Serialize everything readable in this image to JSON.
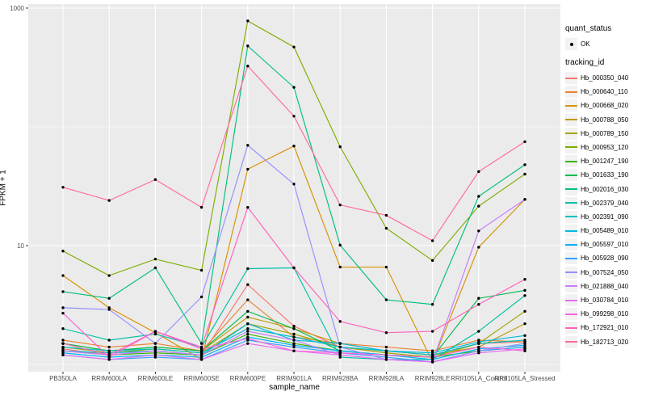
{
  "figure": {
    "bg": "#FFFFFF",
    "panel_bg": "#EBEBEB",
    "grid_color": "#FFFFFF",
    "tick_color": "#333333",
    "tick_label_color": "#4D4D4D",
    "point_color": "#000000"
  },
  "chart_data": {
    "type": "line",
    "title": "",
    "xlabel": "sample_name",
    "ylabel": "FPKM + 1",
    "y_scale": "log10",
    "ylim": [
      0.87,
      1080
    ],
    "grid": true,
    "legend_position": "right",
    "y_ticks": [
      {
        "label": "10",
        "value": 10
      },
      {
        "label": "1000",
        "value": 1000
      }
    ],
    "y_minor": [
      1,
      100
    ],
    "categories": [
      "PB350LA",
      "RRIM600LA",
      "RRIM600LE",
      "RRIM600SE",
      "RRIM600PE",
      "RRIM901LA",
      "RRIM928BA",
      "RRIM928LA",
      "RRIM928LE",
      "RRII105LA_Control",
      "RRII105LA_Stressed"
    ],
    "series": [
      {
        "name": "Hb_000350_040",
        "color": "#F8766D",
        "values": [
          1.35,
          1.2,
          1.3,
          1.2,
          4.7,
          2.1,
          1.4,
          1.3,
          1.2,
          1.5,
          1.55
        ]
      },
      {
        "name": "Hb_000640_110",
        "color": "#EA8331",
        "values": [
          1.6,
          1.4,
          1.5,
          1.3,
          3.5,
          1.7,
          1.5,
          1.4,
          1.3,
          1.6,
          1.55
        ]
      },
      {
        "name": "Hb_000668_020",
        "color": "#D89000",
        "values": [
          5.6,
          3.0,
          1.85,
          1.1,
          44,
          69,
          6.6,
          6.6,
          1.05,
          9.7,
          24.5
        ]
      },
      {
        "name": "Hb_000788_050",
        "color": "#C09B00",
        "values": [
          1.5,
          1.3,
          1.4,
          1.3,
          2.5,
          2.0,
          1.5,
          1.3,
          1.2,
          1.4,
          2.2
        ]
      },
      {
        "name": "Hb_000789_150",
        "color": "#A3A500",
        "values": [
          1.4,
          1.25,
          1.35,
          1.25,
          2.2,
          1.8,
          1.4,
          1.25,
          1.15,
          1.5,
          2.8
        ]
      },
      {
        "name": "Hb_000953_120",
        "color": "#7CAE00",
        "values": [
          9.0,
          5.6,
          7.7,
          6.2,
          780,
          470,
          68,
          14,
          7.5,
          21.5,
          40
        ]
      },
      {
        "name": "Hb_001247_190",
        "color": "#39B600",
        "values": [
          1.3,
          1.2,
          1.25,
          1.2,
          1.8,
          1.5,
          1.3,
          1.2,
          1.15,
          1.3,
          1.4
        ]
      },
      {
        "name": "Hb_001633_190",
        "color": "#00BB4E",
        "values": [
          1.5,
          1.3,
          1.4,
          1.3,
          2.8,
          2.0,
          1.3,
          1.2,
          1.15,
          3.6,
          4.2
        ]
      },
      {
        "name": "Hb_002016_030",
        "color": "#00BF7D",
        "values": [
          4.1,
          3.6,
          6.5,
          1.5,
          480,
          215,
          10.1,
          3.5,
          3.2,
          26,
          48
        ]
      },
      {
        "name": "Hb_002379_040",
        "color": "#00C1A3",
        "values": [
          2.0,
          1.6,
          1.8,
          1.4,
          6.4,
          6.5,
          1.15,
          1.1,
          1.1,
          1.9,
          3.8
        ]
      },
      {
        "name": "Hb_002391_090",
        "color": "#00BFC4",
        "values": [
          1.4,
          1.3,
          1.35,
          1.25,
          2.0,
          1.7,
          1.4,
          1.3,
          1.2,
          1.5,
          1.6
        ]
      },
      {
        "name": "Hb_005489_010",
        "color": "#00BAE0",
        "values": [
          1.3,
          1.25,
          1.3,
          1.2,
          2.2,
          1.6,
          1.5,
          1.3,
          1.25,
          1.55,
          1.75
        ]
      },
      {
        "name": "Hb_005597_010",
        "color": "#00B0F6",
        "values": [
          1.25,
          1.15,
          1.2,
          1.15,
          1.7,
          1.45,
          1.3,
          1.2,
          1.1,
          1.35,
          1.45
        ]
      },
      {
        "name": "Hb_005928_090",
        "color": "#35A2FF",
        "values": [
          1.2,
          1.1,
          1.15,
          1.1,
          1.6,
          1.4,
          1.25,
          1.15,
          1.05,
          1.3,
          1.4
        ]
      },
      {
        "name": "Hb_007524_050",
        "color": "#9590FF",
        "values": [
          3.0,
          2.9,
          1.5,
          3.7,
          70,
          33,
          1.4,
          1.1,
          1.05,
          1.3,
          1.5
        ]
      },
      {
        "name": "Hb_021888_040",
        "color": "#C77CFF",
        "values": [
          1.3,
          1.2,
          1.3,
          1.2,
          1.9,
          1.6,
          1.2,
          1.1,
          1.05,
          13.3,
          24.5
        ]
      },
      {
        "name": "Hb_030784_010",
        "color": "#E76BF3",
        "values": [
          1.2,
          1.1,
          1.2,
          1.1,
          1.5,
          1.3,
          1.2,
          1.1,
          1.05,
          1.25,
          1.35
        ]
      },
      {
        "name": "Hb_099298_010",
        "color": "#FA62DB",
        "values": [
          2.7,
          1.15,
          1.9,
          1.35,
          1.65,
          1.3,
          1.25,
          1.2,
          1.15,
          1.4,
          1.3
        ]
      },
      {
        "name": "Hb_172921_010",
        "color": "#FF62BC",
        "values": [
          1.5,
          1.2,
          1.9,
          1.4,
          21,
          6.5,
          2.3,
          1.85,
          1.9,
          3.2,
          5.2
        ]
      },
      {
        "name": "Hb_182713_020",
        "color": "#FF6A98",
        "values": [
          31,
          24,
          36,
          21,
          325,
          123,
          22,
          18,
          11,
          42,
          75
        ]
      }
    ],
    "legend": {
      "quant_status_title": "quant_status",
      "quant_status_items": [
        {
          "label": "OK",
          "symbol": "point",
          "color": "#000000"
        }
      ],
      "tracking_title": "tracking_id",
      "key_bg": "#F2F2F2"
    }
  }
}
